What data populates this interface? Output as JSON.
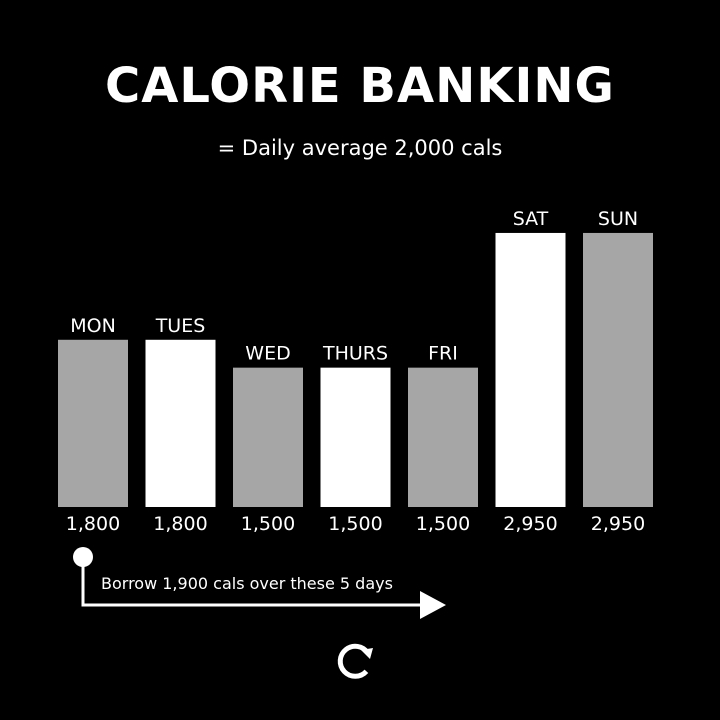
{
  "title": "CALORIE BANKING",
  "subtitle": "= Daily average 2,000 cals",
  "chart_data": {
    "type": "bar",
    "title": "CALORIE BANKING",
    "subtitle": "= Daily average 2,000 cals",
    "categories": [
      "MON",
      "TUES",
      "WED",
      "THURS",
      "FRI",
      "SAT",
      "SUN"
    ],
    "values": [
      1800,
      1800,
      1500,
      1500,
      1500,
      2950,
      2950
    ],
    "value_labels": [
      "1,800",
      "1,800",
      "1,500",
      "1,500",
      "1,500",
      "2,950",
      "2,950"
    ],
    "bar_colors": [
      "#a6a6a6",
      "#ffffff",
      "#a6a6a6",
      "#ffffff",
      "#a6a6a6",
      "#ffffff",
      "#a6a6a6"
    ],
    "xlabel": "",
    "ylabel": "",
    "grid": false,
    "annotation": "Borrow 1,900 cals over these 5 days"
  },
  "colors": {
    "background": "#000000",
    "text": "#ffffff",
    "gray_bar": "#a6a6a6",
    "white_bar": "#ffffff"
  },
  "icons": {
    "logo": "circular-arrow-logo-icon"
  }
}
